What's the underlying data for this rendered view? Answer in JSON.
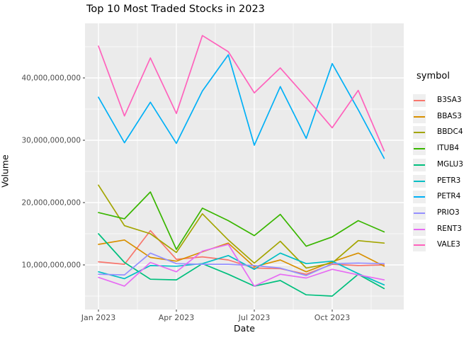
{
  "title": "Top 10 Most Traded Stocks in 2023",
  "axes": {
    "x_label": "Date",
    "y_label": "Volume",
    "x_tick_labels": [
      "Jan 2023",
      "Apr 2023",
      "Jul 2023",
      "Oct 2023"
    ],
    "x_tick_month_index": [
      0,
      3,
      6,
      9
    ],
    "y_tick_labels": [
      "10,000,000,000",
      "20,000,000,000",
      "30,000,000,000",
      "40,000,000,000"
    ],
    "y_tick_values_billions": [
      10,
      20,
      30,
      40
    ],
    "y_minor_values_billions": [
      5,
      15,
      25,
      35,
      45
    ],
    "tick_label_color": "#4d4d4d"
  },
  "legend": {
    "title": "symbol",
    "entries": [
      {
        "label": "B3SA3",
        "color": "#F8766D"
      },
      {
        "label": "BBAS3",
        "color": "#D89000"
      },
      {
        "label": "BBDC4",
        "color": "#A3A500"
      },
      {
        "label": "ITUB4",
        "color": "#39B600"
      },
      {
        "label": "MGLU3",
        "color": "#00BF7D"
      },
      {
        "label": "PETR3",
        "color": "#00BFC4"
      },
      {
        "label": "PETR4",
        "color": "#00B0F6"
      },
      {
        "label": "PRIO3",
        "color": "#9590FF"
      },
      {
        "label": "RENT3",
        "color": "#E76BF3"
      },
      {
        "label": "VALE3",
        "color": "#FF62BC"
      }
    ]
  },
  "panel": {
    "background": "#EBEBEB",
    "gridline_color": "#FFFFFF"
  },
  "chart_data": {
    "type": "line",
    "title": "Top 10 Most Traded Stocks in 2023",
    "xlabel": "Date",
    "ylabel": "Volume",
    "x": [
      "2023-01",
      "2023-02",
      "2023-03",
      "2023-04",
      "2023-05",
      "2023-06",
      "2023-07",
      "2023-08",
      "2023-09",
      "2023-10",
      "2023-11",
      "2023-12"
    ],
    "unit": "volume, billions (value × 1,000,000,000)",
    "ylim_billions": [
      2.8,
      48.8
    ],
    "legend_position": "right",
    "grid": true,
    "series": [
      {
        "name": "B3SA3",
        "color": "#F8766D",
        "values_billions": [
          10.5,
          10.1,
          15.5,
          10.9,
          11.3,
          10.8,
          9.5,
          9.4,
          8.5,
          10.1,
          9.9,
          10.0
        ]
      },
      {
        "name": "BBAS3",
        "color": "#D89000",
        "values_billions": [
          13.3,
          14.0,
          11.2,
          10.6,
          12.1,
          13.5,
          9.7,
          10.8,
          8.9,
          10.5,
          11.9,
          9.8
        ]
      },
      {
        "name": "BBDC4",
        "color": "#A3A500",
        "values_billions": [
          22.8,
          16.3,
          15.0,
          12.0,
          18.2,
          14.0,
          10.3,
          13.8,
          9.5,
          10.3,
          13.9,
          13.5
        ]
      },
      {
        "name": "ITUB4",
        "color": "#39B600",
        "values_billions": [
          18.4,
          17.4,
          21.7,
          12.5,
          19.1,
          17.1,
          14.7,
          18.1,
          13.0,
          14.5,
          17.1,
          15.3
        ]
      },
      {
        "name": "MGLU3",
        "color": "#00BF7D",
        "values_billions": [
          15.0,
          10.4,
          7.7,
          7.6,
          10.2,
          8.5,
          6.6,
          7.5,
          5.2,
          5.0,
          8.5,
          6.2
        ]
      },
      {
        "name": "PETR3",
        "color": "#00BFC4",
        "values_billions": [
          8.9,
          7.8,
          9.9,
          9.8,
          10.2,
          11.5,
          9.3,
          11.9,
          10.2,
          10.6,
          8.6,
          6.8
        ]
      },
      {
        "name": "PETR4",
        "color": "#00B0F6",
        "values_billions": [
          36.9,
          29.6,
          36.1,
          29.5,
          37.9,
          43.7,
          29.2,
          38.6,
          30.3,
          42.3,
          34.9,
          27.1
        ]
      },
      {
        "name": "PRIO3",
        "color": "#9590FF",
        "values_billions": [
          8.5,
          8.4,
          11.9,
          10.2,
          10.1,
          10.1,
          9.9,
          9.5,
          8.3,
          10.2,
          10.3,
          10.2
        ]
      },
      {
        "name": "RENT3",
        "color": "#E76BF3",
        "values_billions": [
          8.0,
          6.6,
          10.4,
          8.9,
          12.2,
          13.3,
          6.6,
          8.5,
          7.9,
          9.3,
          8.4,
          7.6
        ]
      },
      {
        "name": "VALE3",
        "color": "#FF62BC",
        "values_billions": [
          45.1,
          33.9,
          43.2,
          34.3,
          46.8,
          44.2,
          37.6,
          41.6,
          36.9,
          32.0,
          38.0,
          28.3
        ]
      }
    ]
  }
}
